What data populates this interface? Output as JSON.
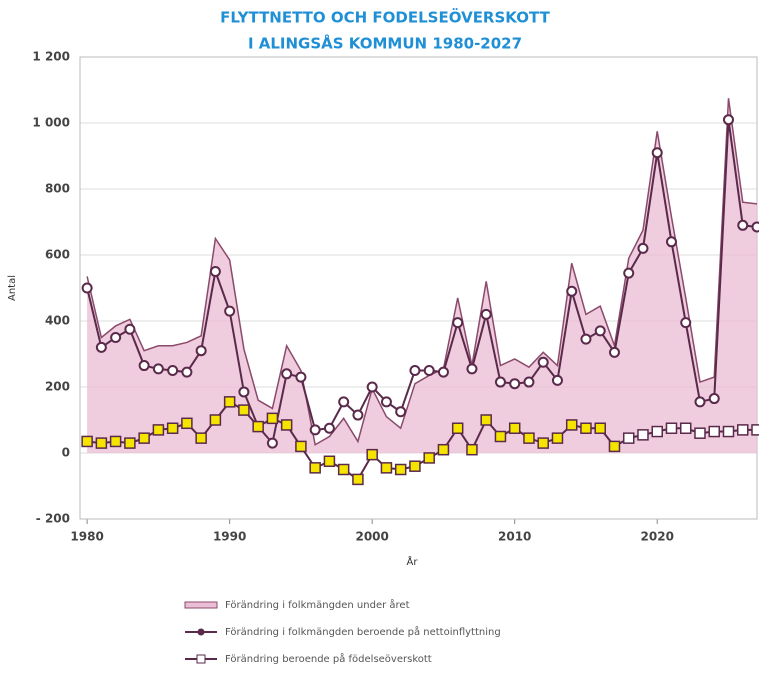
{
  "chart_data": {
    "type": "line",
    "title": "FLYTTNETTO OCH FODELSEÖVERSKOTT",
    "subtitle": "I ALINGSÅS KOMMUN 1980-2027",
    "y_label": "Antal",
    "x_label": "År",
    "x": [
      1980,
      1981,
      1982,
      1983,
      1984,
      1985,
      1986,
      1987,
      1988,
      1989,
      1990,
      1991,
      1992,
      1993,
      1994,
      1995,
      1996,
      1997,
      1998,
      1999,
      2000,
      2001,
      2002,
      2003,
      2004,
      2005,
      2006,
      2007,
      2008,
      2009,
      2010,
      2011,
      2012,
      2013,
      2014,
      2015,
      2016,
      2017,
      2018,
      2019,
      2020,
      2021,
      2022,
      2023,
      2024,
      2025,
      2026,
      2027
    ],
    "series": [
      {
        "name": "Förändring i folkmängden under året",
        "color": "#8b4a6b",
        "fill": "#ebbfd6",
        "values": [
          535,
          350,
          385,
          405,
          310,
          325,
          325,
          335,
          355,
          650,
          585,
          315,
          160,
          135,
          325,
          250,
          25,
          50,
          105,
          35,
          195,
          110,
          75,
          210,
          235,
          255,
          470,
          265,
          520,
          265,
          285,
          260,
          305,
          265,
          575,
          420,
          445,
          325,
          590,
          675,
          975,
          715,
          470,
          215,
          230,
          1075,
          760,
          755
        ]
      },
      {
        "name": "Förändring i folkmängden beroende på nettoinflyttning",
        "color": "#5a2a4a",
        "marker": "circle",
        "values": [
          500,
          320,
          350,
          375,
          265,
          255,
          250,
          245,
          310,
          550,
          430,
          185,
          80,
          30,
          240,
          230,
          70,
          75,
          155,
          115,
          200,
          155,
          125,
          250,
          250,
          245,
          395,
          255,
          420,
          215,
          210,
          215,
          275,
          220,
          490,
          345,
          370,
          305,
          545,
          620,
          910,
          640,
          395,
          155,
          165,
          1010,
          690,
          685
        ]
      },
      {
        "name": "Förändring beroende på födelseöverskott",
        "color": "#5a2a4a",
        "marker": "square",
        "marker_fill": "#f5e400",
        "marker_fill_projection": "#ffffff",
        "projection_start": 2018,
        "values": [
          35,
          30,
          35,
          30,
          45,
          70,
          75,
          90,
          45,
          100,
          155,
          130,
          80,
          105,
          85,
          20,
          -45,
          -25,
          -50,
          -80,
          -5,
          -45,
          -50,
          -40,
          -15,
          10,
          75,
          10,
          100,
          50,
          75,
          45,
          30,
          45,
          85,
          75,
          75,
          20,
          45,
          55,
          65,
          75,
          75,
          60,
          65,
          65,
          70,
          70
        ]
      }
    ],
    "xlim": [
      1979.5,
      2027
    ],
    "xticks": [
      1980,
      1990,
      2000,
      2010,
      2020
    ],
    "ylim": [
      -200,
      1200
    ],
    "yticks": [
      {
        "value": -200,
        "label": "- 200"
      },
      0,
      200,
      400,
      600,
      800,
      {
        "value": 1000,
        "label": "1 000"
      },
      {
        "value": 1200,
        "label": "1 200"
      }
    ],
    "grid": true,
    "legend": "bottom"
  }
}
